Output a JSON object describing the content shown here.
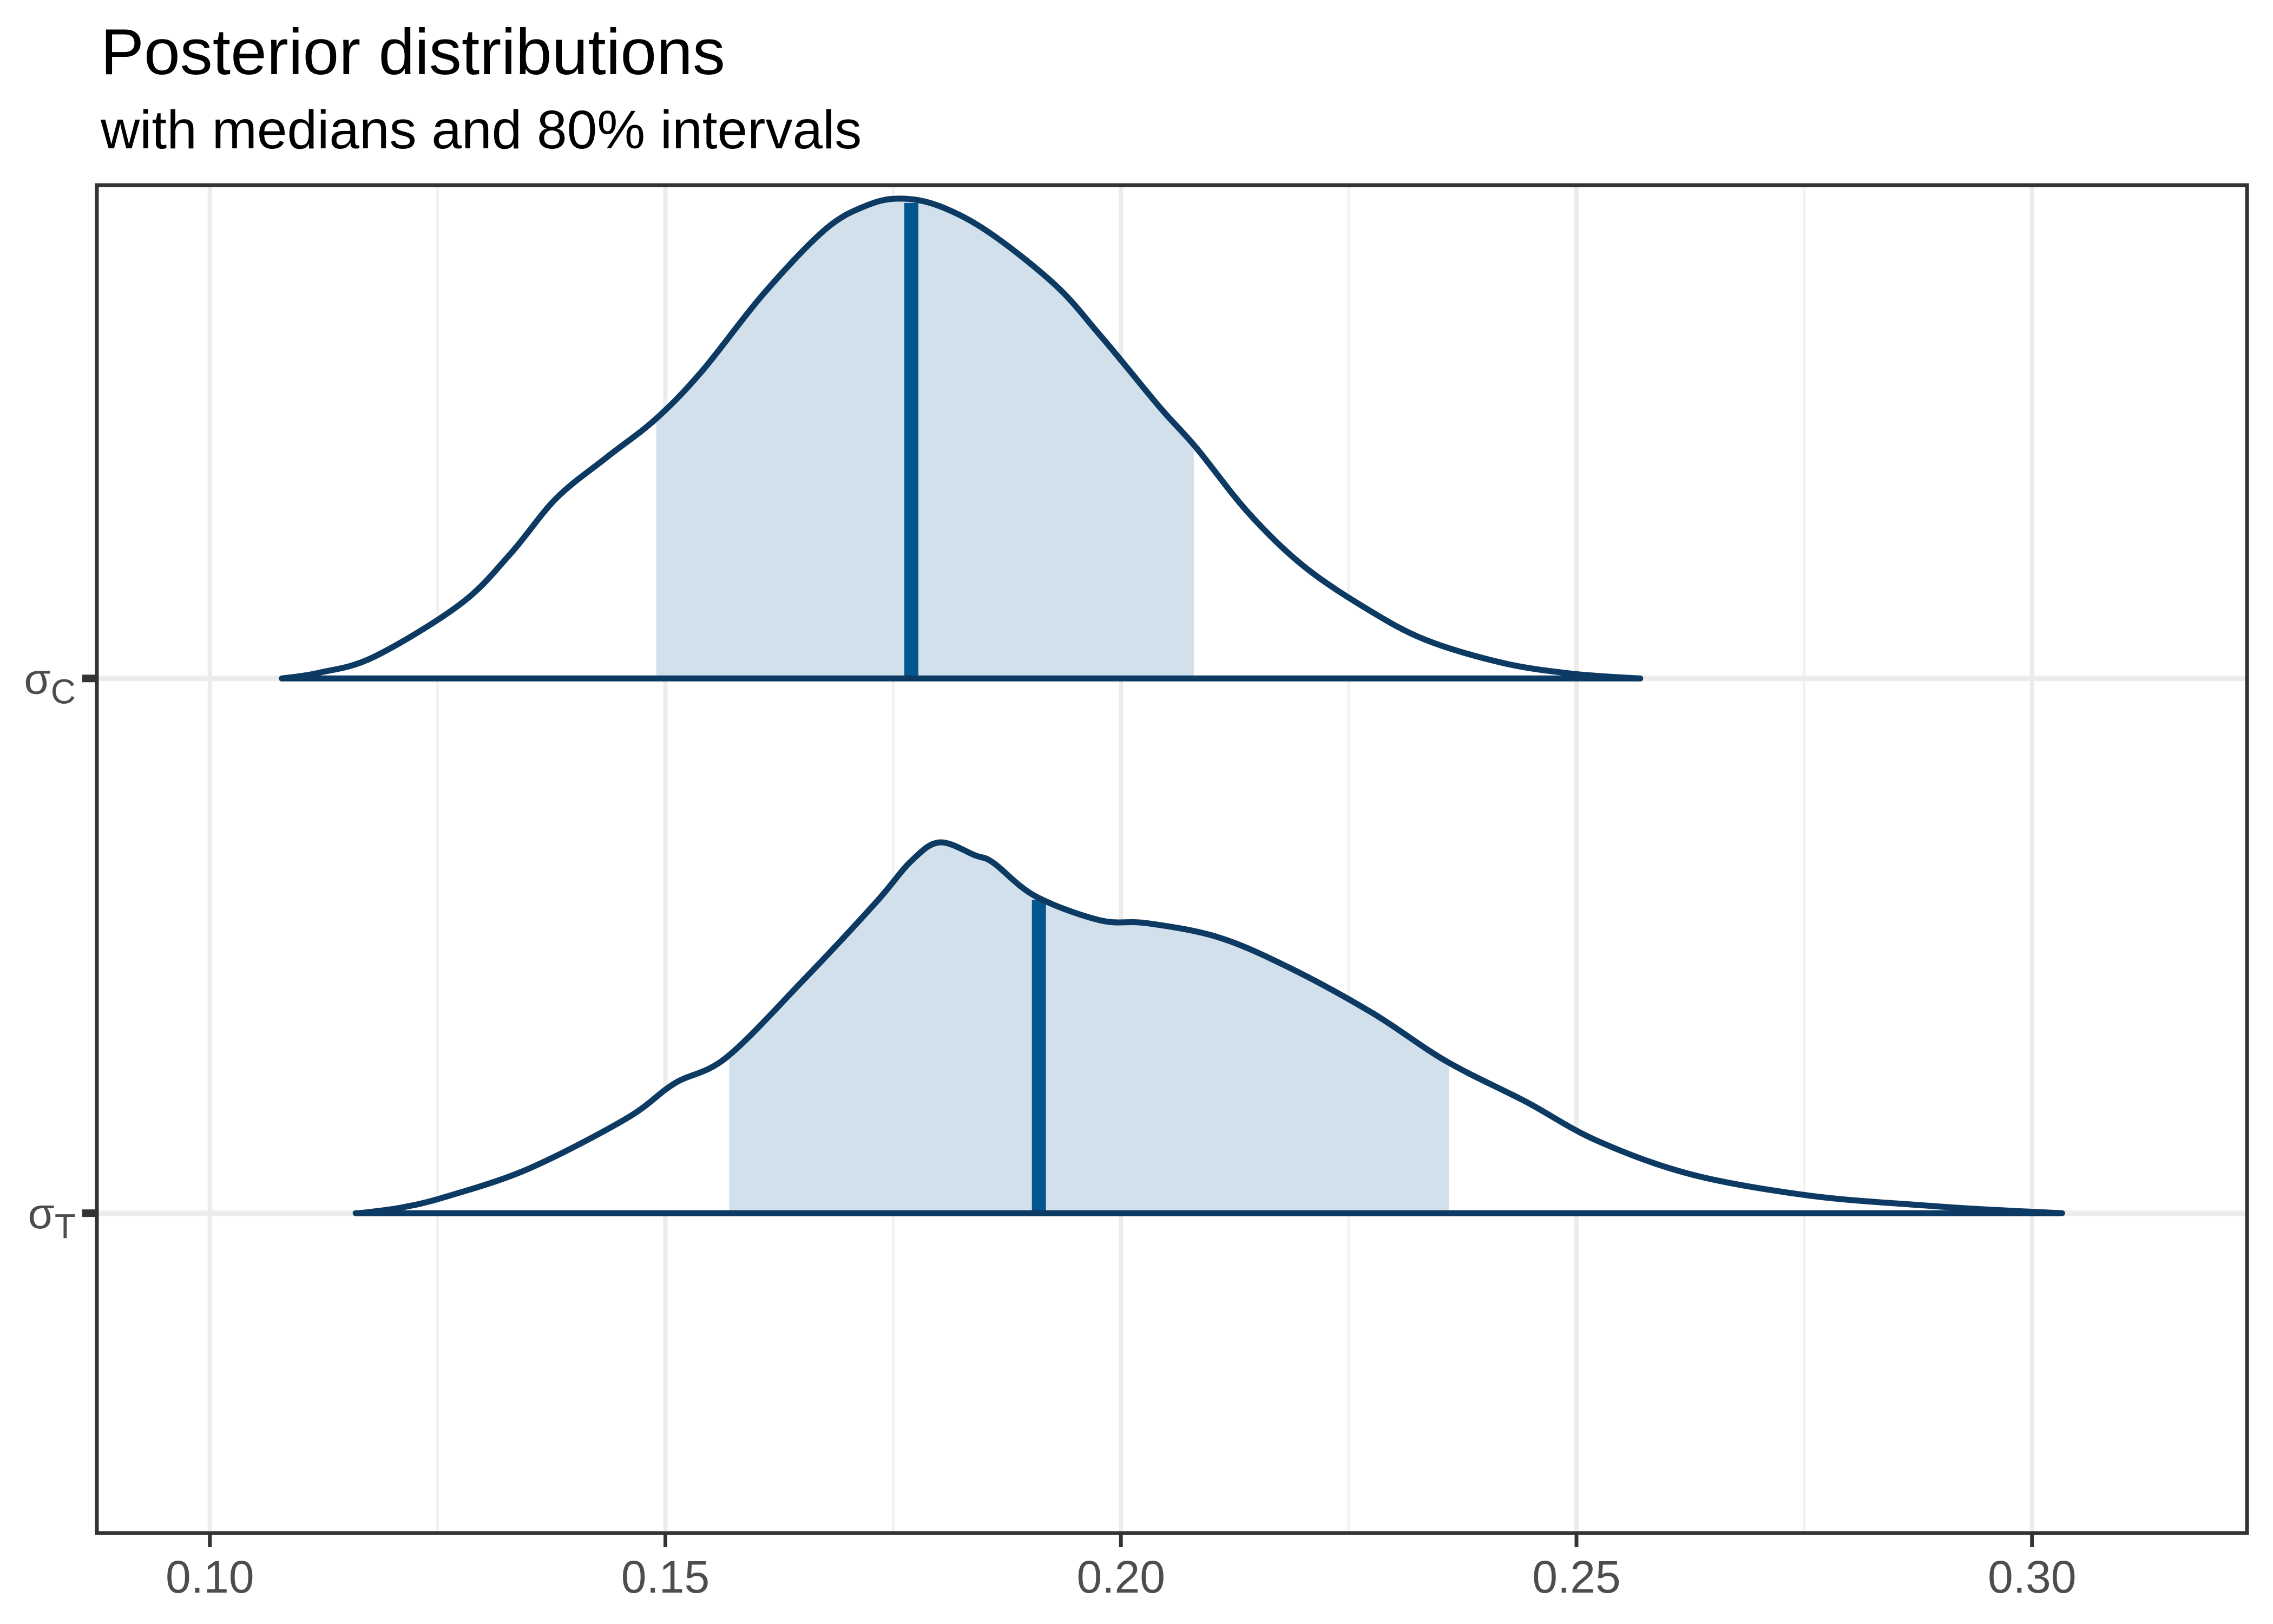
{
  "chart_data": {
    "type": "area",
    "title": "Posterior distributions",
    "subtitle": "with medians and 80% intervals",
    "interval_level": "80%",
    "legend": "none",
    "grid": "on",
    "x_axis": {
      "range": [
        0.0876,
        0.3236
      ],
      "major_ticks": [
        0.1,
        0.15,
        0.2,
        0.25,
        0.3
      ],
      "tick_labels": [
        "0.10",
        "0.15",
        "0.20",
        "0.25",
        "0.30"
      ],
      "minor_ticks": [
        0.125,
        0.175,
        0.225,
        0.275
      ]
    },
    "series": [
      {
        "name": "sigma_C",
        "label": {
          "base": "σ",
          "sub": "C"
        },
        "median": 0.177,
        "interval_80": [
          0.149,
          0.208
        ],
        "x_range": [
          0.108,
          0.257
        ],
        "y_frac": 0.366,
        "height_frac": 0.356,
        "density": [
          [
            0.1079,
            0.0
          ],
          [
            0.112,
            0.012
          ],
          [
            0.118,
            0.045
          ],
          [
            0.1275,
            0.155
          ],
          [
            0.133,
            0.26
          ],
          [
            0.138,
            0.375
          ],
          [
            0.1435,
            0.46
          ],
          [
            0.1489,
            0.54
          ],
          [
            0.154,
            0.64
          ],
          [
            0.1607,
            0.8
          ],
          [
            0.1675,
            0.935
          ],
          [
            0.172,
            0.985
          ],
          [
            0.1757,
            1.0
          ],
          [
            0.18,
            0.985
          ],
          [
            0.1855,
            0.93
          ],
          [
            0.1928,
            0.82
          ],
          [
            0.1975,
            0.72
          ],
          [
            0.2008,
            0.645
          ],
          [
            0.2045,
            0.56
          ],
          [
            0.2083,
            0.48
          ],
          [
            0.214,
            0.345
          ],
          [
            0.22,
            0.235
          ],
          [
            0.227,
            0.145
          ],
          [
            0.2335,
            0.08
          ],
          [
            0.242,
            0.032
          ],
          [
            0.2495,
            0.01
          ],
          [
            0.2568,
            0.0
          ]
        ]
      },
      {
        "name": "sigma_T",
        "label": {
          "base": "σ",
          "sub": "T"
        },
        "median": 0.191,
        "interval_80": [
          0.157,
          0.236
        ],
        "x_range": [
          0.116,
          0.303
        ],
        "y_frac": 0.7627,
        "height_frac": 0.2751,
        "density": [
          [
            0.1164,
            0.0
          ],
          [
            0.121,
            0.015
          ],
          [
            0.126,
            0.045
          ],
          [
            0.135,
            0.12
          ],
          [
            0.1457,
            0.255
          ],
          [
            0.151,
            0.35
          ],
          [
            0.1567,
            0.42
          ],
          [
            0.1652,
            0.63
          ],
          [
            0.173,
            0.835
          ],
          [
            0.177,
            0.95
          ],
          [
            0.1801,
            1.0
          ],
          [
            0.184,
            0.965
          ],
          [
            0.186,
            0.945
          ],
          [
            0.1906,
            0.855
          ],
          [
            0.1977,
            0.79
          ],
          [
            0.2029,
            0.782
          ],
          [
            0.2107,
            0.744
          ],
          [
            0.2185,
            0.662
          ],
          [
            0.2276,
            0.54
          ],
          [
            0.2357,
            0.41
          ],
          [
            0.2445,
            0.3
          ],
          [
            0.2523,
            0.195
          ],
          [
            0.2627,
            0.104
          ],
          [
            0.2757,
            0.047
          ],
          [
            0.2887,
            0.02
          ],
          [
            0.295,
            0.01
          ],
          [
            0.3033,
            0.0
          ]
        ]
      }
    ],
    "colors": {
      "outline": "#0c3a63",
      "median_line": "#04578e",
      "interval_fill": "#d2e0eb",
      "area_fill_outside_interval": "#ffffff",
      "panel_border": "#333333",
      "grid_major": "#ececec",
      "grid_minor": "#f2f2f2",
      "axis_text": "#4d4d4d",
      "tick_mark": "#333333",
      "background": "#ffffff"
    }
  }
}
